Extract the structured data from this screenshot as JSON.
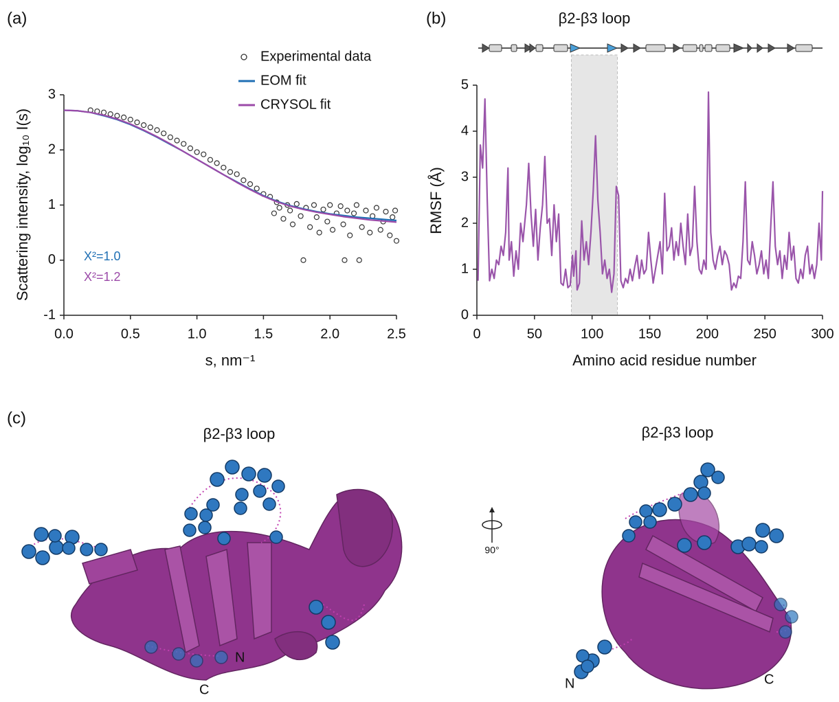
{
  "panel_labels": [
    "(a)",
    "(b)",
    "(c)"
  ],
  "chart_data": [
    {
      "type": "line",
      "xlabel": "s, nm⁻¹",
      "ylabel": "Scattering intensity, log₁₀ I(s)",
      "xlim": [
        0,
        2.5
      ],
      "ylim": [
        -1,
        3
      ],
      "xticks": [
        {
          "value": 0,
          "label": "0.0"
        },
        0.5,
        {
          "value": 1,
          "label": "1.0"
        },
        1.5,
        {
          "value": 2,
          "label": "2.0"
        },
        2.5
      ],
      "yticks": [
        -1,
        0,
        1,
        2,
        3
      ],
      "legend": "upper right",
      "series": [
        {
          "name": "Experimental data",
          "mode": "markers",
          "color": "#333333",
          "x": [
            0.2,
            0.25,
            0.3,
            0.35,
            0.4,
            0.45,
            0.5,
            0.55,
            0.6,
            0.65,
            0.7,
            0.75,
            0.8,
            0.85,
            0.9,
            0.95,
            1.0,
            1.05,
            1.1,
            1.15,
            1.2,
            1.25,
            1.3,
            1.35,
            1.4,
            1.45,
            1.5,
            1.55,
            1.58,
            1.6,
            1.62,
            1.65,
            1.68,
            1.7,
            1.72,
            1.75,
            1.78,
            1.8,
            1.82,
            1.85,
            1.88,
            1.9,
            1.92,
            1.95,
            1.98,
            2.0,
            2.02,
            2.05,
            2.08,
            2.1,
            2.11,
            2.13,
            2.15,
            2.18,
            2.2,
            2.22,
            2.24,
            2.27,
            2.3,
            2.32,
            2.35,
            2.38,
            2.4,
            2.42,
            2.45,
            2.47,
            2.49,
            2.5
          ],
          "values": [
            2.72,
            2.7,
            2.68,
            2.65,
            2.62,
            2.59,
            2.55,
            2.5,
            2.45,
            2.41,
            2.36,
            2.3,
            2.23,
            2.17,
            2.11,
            2.03,
            1.96,
            1.92,
            1.82,
            1.76,
            1.68,
            1.6,
            1.56,
            1.45,
            1.38,
            1.3,
            1.2,
            1.15,
            0.85,
            1.05,
            0.95,
            0.75,
            1.0,
            0.9,
            0.65,
            1.02,
            0.8,
            0.0,
            0.95,
            0.6,
            1.0,
            0.78,
            0.5,
            0.92,
            0.7,
            1.0,
            0.55,
            0.85,
            0.98,
            0.65,
            0.0,
            0.9,
            0.45,
            0.85,
            1.0,
            0.0,
            0.6,
            0.9,
            0.5,
            0.8,
            0.95,
            0.55,
            0.7,
            0.88,
            0.45,
            0.78,
            0.9,
            0.35
          ]
        },
        {
          "name": "EOM fit",
          "mode": "line",
          "color": "#1f6fb4",
          "x": [
            0,
            0.1,
            0.2,
            0.3,
            0.4,
            0.5,
            0.6,
            0.7,
            0.8,
            0.9,
            1.0,
            1.1,
            1.2,
            1.3,
            1.4,
            1.5,
            1.6,
            1.7,
            1.8,
            1.9,
            2.0,
            2.1,
            2.2,
            2.3,
            2.4,
            2.5
          ],
          "values": [
            2.72,
            2.71,
            2.68,
            2.62,
            2.55,
            2.46,
            2.35,
            2.23,
            2.1,
            1.97,
            1.83,
            1.69,
            1.55,
            1.42,
            1.29,
            1.17,
            1.07,
            0.99,
            0.93,
            0.88,
            0.84,
            0.81,
            0.78,
            0.76,
            0.74,
            0.72
          ]
        },
        {
          "name": "CRYSOL fit",
          "mode": "line",
          "color": "#9b4aa8",
          "x": [
            0,
            0.1,
            0.2,
            0.3,
            0.4,
            0.5,
            0.6,
            0.7,
            0.8,
            0.9,
            1.0,
            1.1,
            1.2,
            1.3,
            1.4,
            1.5,
            1.6,
            1.7,
            1.8,
            1.9,
            2.0,
            2.1,
            2.2,
            2.3,
            2.4,
            2.5
          ],
          "values": [
            2.72,
            2.71,
            2.68,
            2.63,
            2.56,
            2.47,
            2.36,
            2.24,
            2.11,
            1.97,
            1.83,
            1.69,
            1.55,
            1.41,
            1.28,
            1.16,
            1.06,
            0.98,
            0.92,
            0.87,
            0.83,
            0.79,
            0.76,
            0.73,
            0.71,
            0.69
          ]
        }
      ],
      "annotations": [
        {
          "text": "X²=1.0",
          "color": "#1f6fb4"
        },
        {
          "text": "X²=1.2",
          "color": "#9b4aa8"
        }
      ]
    },
    {
      "type": "line",
      "xlabel": "Amino acid residue number",
      "ylabel": "RMSF (Å)",
      "xlim": [
        0,
        300
      ],
      "ylim": [
        0,
        5
      ],
      "xticks": [
        0,
        50,
        100,
        150,
        200,
        250,
        300
      ],
      "yticks": [
        0,
        1,
        2,
        3,
        4,
        5
      ],
      "highlight": {
        "x": [
          82,
          122
        ],
        "color": "#e6e6e6",
        "label": "β2-β3 loop"
      },
      "series": [
        {
          "mode": "line",
          "color": "#9a55aa",
          "x": [
            1,
            3,
            5,
            7,
            9,
            11,
            13,
            15,
            17,
            19,
            21,
            23,
            25,
            27,
            28,
            30,
            32,
            34,
            36,
            38,
            40,
            43,
            45,
            47,
            49,
            51,
            53,
            55,
            57,
            59,
            61,
            63,
            65,
            67,
            69,
            71,
            73,
            75,
            77,
            79,
            81,
            83,
            84,
            86,
            87,
            89,
            91,
            93,
            95,
            97,
            99,
            101,
            103,
            105,
            107,
            109,
            111,
            113,
            115,
            117,
            119,
            121,
            123,
            125,
            127,
            129,
            131,
            133,
            135,
            137,
            139,
            141,
            143,
            145,
            147,
            149,
            151,
            153,
            155,
            157,
            159,
            161,
            163,
            165,
            167,
            169,
            171,
            173,
            175,
            177,
            179,
            181,
            183,
            185,
            187,
            189,
            191,
            193,
            195,
            197,
            199,
            201,
            203,
            205,
            207,
            209,
            211,
            213,
            215,
            217,
            219,
            221,
            223,
            225,
            227,
            229,
            231,
            233,
            235,
            237,
            239,
            241,
            243,
            245,
            247,
            249,
            251,
            253,
            255,
            257,
            259,
            261,
            263,
            265,
            267,
            269,
            271,
            273,
            275,
            277,
            279,
            281,
            283,
            285,
            287,
            289,
            291,
            293,
            295,
            297,
            299,
            300
          ],
          "values": [
            0.75,
            3.7,
            3.2,
            4.7,
            2.5,
            0.75,
            1.0,
            0.8,
            1.2,
            1.1,
            1.5,
            1.3,
            1.8,
            3.2,
            1.2,
            1.6,
            0.85,
            1.4,
            1.0,
            2.0,
            1.6,
            2.4,
            3.3,
            2.2,
            1.5,
            2.3,
            1.2,
            1.9,
            2.4,
            3.45,
            2.0,
            2.1,
            1.3,
            2.4,
            1.6,
            2.2,
            0.7,
            0.65,
            1.0,
            0.6,
            0.65,
            1.3,
            0.85,
            1.4,
            0.55,
            0.7,
            2.05,
            1.2,
            1.6,
            1.1,
            1.8,
            2.7,
            3.9,
            2.5,
            1.8,
            0.9,
            1.2,
            0.8,
            1.0,
            0.5,
            0.9,
            2.8,
            2.6,
            0.75,
            0.6,
            0.8,
            0.7,
            1.0,
            0.75,
            1.05,
            1.3,
            0.8,
            1.2,
            0.9,
            1.0,
            1.8,
            1.2,
            0.7,
            1.0,
            1.3,
            1.6,
            0.9,
            2.65,
            1.4,
            1.5,
            1.9,
            1.2,
            1.6,
            1.3,
            2.0,
            1.5,
            1.1,
            2.2,
            1.3,
            1.5,
            2.8,
            1.6,
            1.0,
            0.9,
            1.2,
            1.0,
            4.85,
            1.8,
            1.2,
            1.0,
            1.3,
            1.5,
            1.1,
            1.4,
            1.3,
            1.1,
            0.55,
            0.7,
            0.6,
            0.85,
            0.8,
            1.6,
            2.9,
            1.2,
            1.1,
            1.6,
            1.3,
            0.9,
            1.1,
            1.4,
            0.9,
            1.2,
            0.8,
            1.9,
            2.9,
            1.5,
            1.1,
            1.4,
            0.8,
            1.3,
            1.0,
            1.8,
            1.2,
            1.5,
            0.8,
            0.7,
            1.0,
            0.8,
            1.3,
            1.5,
            0.9,
            1.1,
            0.8,
            1.1,
            2.0,
            1.2,
            2.7
          ]
        }
      ]
    }
  ],
  "structure": {
    "views": [
      {
        "title": "β2-β3 loop",
        "n_label": "N",
        "c_label": "C"
      },
      {
        "title": "β2-β3 loop",
        "n_label": "N",
        "c_label": "C"
      }
    ],
    "rotation": "90°"
  }
}
